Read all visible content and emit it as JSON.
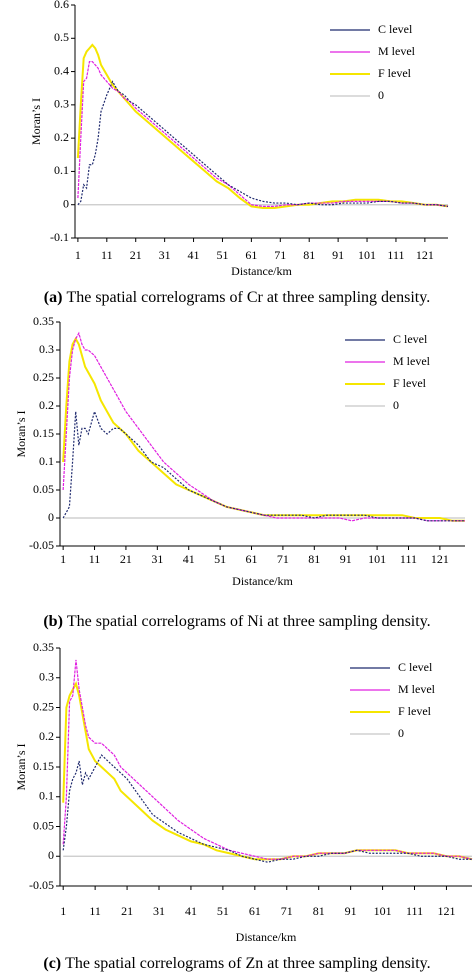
{
  "chart_data": [
    {
      "type": "line",
      "caption_label": "(a)",
      "caption": "The spatial correlograms of Cr at three sampling density.",
      "x_label": "Distance/km",
      "y_label": "Moran’s I",
      "xlim": [
        0,
        129
      ],
      "ylim": [
        -0.1,
        0.6
      ],
      "xticks": [
        1,
        11,
        21,
        31,
        41,
        51,
        61,
        71,
        81,
        91,
        101,
        111,
        121
      ],
      "yticks": [
        -0.1,
        0,
        0.1,
        0.2,
        0.3,
        0.4,
        0.5,
        0.6
      ],
      "x": [
        1,
        2,
        3,
        4,
        5,
        6,
        7,
        8,
        9,
        11,
        13,
        15,
        17,
        19,
        21,
        25,
        29,
        33,
        37,
        41,
        45,
        49,
        53,
        57,
        61,
        65,
        69,
        73,
        77,
        81,
        85,
        89,
        93,
        97,
        101,
        105,
        109,
        113,
        117,
        121,
        125,
        129
      ],
      "series": [
        {
          "name": "C level",
          "color": "#1f2a6e",
          "values": [
            0.0,
            0.01,
            0.06,
            0.05,
            0.12,
            0.12,
            0.15,
            0.2,
            0.28,
            0.33,
            0.37,
            0.34,
            0.33,
            0.31,
            0.3,
            0.27,
            0.24,
            0.21,
            0.18,
            0.15,
            0.12,
            0.09,
            0.06,
            0.04,
            0.02,
            0.01,
            0.005,
            0.005,
            0.0,
            0.005,
            0.0,
            0.0,
            0.005,
            0.005,
            0.005,
            0.01,
            0.01,
            0.005,
            0.005,
            0.0,
            0.0,
            -0.005
          ]
        },
        {
          "name": "M level",
          "color": "#e020e0",
          "values": [
            0.02,
            0.2,
            0.37,
            0.38,
            0.43,
            0.43,
            0.42,
            0.41,
            0.39,
            0.37,
            0.35,
            0.34,
            0.32,
            0.31,
            0.29,
            0.26,
            0.23,
            0.2,
            0.17,
            0.14,
            0.11,
            0.08,
            0.06,
            0.03,
            0.0,
            -0.005,
            -0.005,
            0.0,
            0.0,
            0.005,
            0.005,
            0.005,
            0.01,
            0.01,
            0.01,
            0.01,
            0.01,
            0.005,
            0.005,
            0.0,
            0.0,
            -0.005
          ]
        },
        {
          "name": "F level",
          "color": "#f5e600",
          "values": [
            0.14,
            0.3,
            0.44,
            0.46,
            0.47,
            0.48,
            0.47,
            0.45,
            0.42,
            0.39,
            0.36,
            0.34,
            0.32,
            0.3,
            0.28,
            0.25,
            0.22,
            0.19,
            0.16,
            0.13,
            0.1,
            0.07,
            0.05,
            0.02,
            -0.005,
            -0.01,
            -0.01,
            -0.005,
            0.0,
            0.0,
            0.005,
            0.01,
            0.01,
            0.015,
            0.015,
            0.015,
            0.01,
            0.01,
            0.005,
            0.0,
            0.0,
            -0.005
          ]
        },
        {
          "name": "0",
          "color": "#c8c8c8",
          "values": [
            0,
            0,
            0,
            0,
            0,
            0,
            0,
            0,
            0,
            0,
            0,
            0,
            0,
            0,
            0,
            0,
            0,
            0,
            0,
            0,
            0,
            0,
            0,
            0,
            0,
            0,
            0,
            0,
            0,
            0,
            0,
            0,
            0,
            0,
            0,
            0,
            0,
            0,
            0,
            0,
            0,
            0
          ]
        }
      ]
    },
    {
      "type": "line",
      "caption_label": "(b)",
      "caption": "The spatial correlograms of Ni at three sampling density.",
      "x_label": "Distance/km",
      "y_label": "Moran’s I",
      "xlim": [
        0,
        129
      ],
      "ylim": [
        -0.05,
        0.35
      ],
      "xticks": [
        1,
        11,
        21,
        31,
        41,
        51,
        61,
        71,
        81,
        91,
        101,
        111,
        121
      ],
      "yticks": [
        -0.05,
        0,
        0.05,
        0.1,
        0.15,
        0.2,
        0.25,
        0.3,
        0.35
      ],
      "x": [
        1,
        2,
        3,
        4,
        5,
        6,
        7,
        8,
        9,
        11,
        13,
        15,
        17,
        19,
        21,
        25,
        29,
        33,
        37,
        41,
        45,
        49,
        53,
        57,
        61,
        65,
        69,
        73,
        77,
        81,
        85,
        89,
        93,
        97,
        101,
        105,
        109,
        113,
        117,
        121,
        125,
        129
      ],
      "series": [
        {
          "name": "C level",
          "color": "#1f2a6e",
          "values": [
            0.0,
            0.01,
            0.02,
            0.1,
            0.19,
            0.13,
            0.16,
            0.16,
            0.15,
            0.19,
            0.16,
            0.15,
            0.16,
            0.16,
            0.15,
            0.13,
            0.1,
            0.09,
            0.07,
            0.05,
            0.04,
            0.03,
            0.02,
            0.015,
            0.01,
            0.005,
            0.005,
            0.005,
            0.005,
            0.0,
            0.005,
            0.005,
            0.005,
            0.005,
            0.0,
            0.0,
            0.0,
            0.0,
            -0.005,
            -0.005,
            -0.005,
            -0.005
          ]
        },
        {
          "name": "M level",
          "color": "#e020e0",
          "values": [
            0.05,
            0.15,
            0.25,
            0.3,
            0.32,
            0.33,
            0.31,
            0.3,
            0.3,
            0.29,
            0.27,
            0.25,
            0.23,
            0.21,
            0.19,
            0.16,
            0.13,
            0.1,
            0.08,
            0.06,
            0.045,
            0.03,
            0.02,
            0.015,
            0.01,
            0.005,
            0.0,
            0.0,
            0.0,
            0.0,
            0.0,
            0.0,
            -0.005,
            0.0,
            0.0,
            0.0,
            0.0,
            0.0,
            -0.005,
            -0.005,
            -0.005,
            -0.005
          ]
        },
        {
          "name": "F level",
          "color": "#f5e600",
          "values": [
            0.1,
            0.2,
            0.28,
            0.31,
            0.32,
            0.31,
            0.29,
            0.27,
            0.26,
            0.24,
            0.21,
            0.19,
            0.17,
            0.16,
            0.15,
            0.12,
            0.1,
            0.08,
            0.06,
            0.05,
            0.04,
            0.03,
            0.02,
            0.015,
            0.01,
            0.005,
            0.005,
            0.005,
            0.005,
            0.005,
            0.005,
            0.005,
            0.005,
            0.005,
            0.005,
            0.005,
            0.005,
            0.0,
            0.0,
            0.0,
            -0.005,
            -0.005
          ]
        },
        {
          "name": "0",
          "color": "#c8c8c8",
          "values": [
            0,
            0,
            0,
            0,
            0,
            0,
            0,
            0,
            0,
            0,
            0,
            0,
            0,
            0,
            0,
            0,
            0,
            0,
            0,
            0,
            0,
            0,
            0,
            0,
            0,
            0,
            0,
            0,
            0,
            0,
            0,
            0,
            0,
            0,
            0,
            0,
            0,
            0,
            0,
            0,
            0,
            0
          ]
        }
      ]
    },
    {
      "type": "line",
      "caption_label": "(c)",
      "caption": "The spatial correlograms of Zn at three sampling density.",
      "x_label": "Distance/km",
      "y_label": "Moran’s I",
      "xlim": [
        0,
        129
      ],
      "ylim": [
        -0.05,
        0.35
      ],
      "xticks": [
        1,
        11,
        21,
        31,
        41,
        51,
        61,
        71,
        81,
        91,
        101,
        111,
        121
      ],
      "yticks": [
        -0.05,
        0,
        0.05,
        0.1,
        0.15,
        0.2,
        0.25,
        0.3,
        0.35
      ],
      "x": [
        1,
        2,
        3,
        4,
        5,
        6,
        7,
        8,
        9,
        11,
        13,
        15,
        17,
        19,
        21,
        25,
        29,
        33,
        37,
        41,
        45,
        49,
        53,
        57,
        61,
        65,
        69,
        73,
        77,
        81,
        85,
        89,
        93,
        97,
        101,
        105,
        109,
        113,
        117,
        121,
        125,
        129
      ],
      "series": [
        {
          "name": "C level",
          "color": "#1f2a6e",
          "values": [
            0.01,
            0.05,
            0.11,
            0.13,
            0.14,
            0.16,
            0.12,
            0.14,
            0.13,
            0.15,
            0.17,
            0.16,
            0.15,
            0.14,
            0.13,
            0.1,
            0.07,
            0.055,
            0.04,
            0.03,
            0.02,
            0.015,
            0.01,
            0.0,
            -0.005,
            -0.01,
            -0.005,
            -0.005,
            0.0,
            0.0,
            0.005,
            0.005,
            0.01,
            0.005,
            0.005,
            0.005,
            0.005,
            0.0,
            0.0,
            0.0,
            -0.005,
            -0.005
          ]
        },
        {
          "name": "M level",
          "color": "#e020e0",
          "values": [
            0.02,
            0.1,
            0.26,
            0.27,
            0.33,
            0.28,
            0.25,
            0.22,
            0.2,
            0.19,
            0.19,
            0.18,
            0.17,
            0.15,
            0.14,
            0.12,
            0.1,
            0.08,
            0.06,
            0.045,
            0.03,
            0.02,
            0.01,
            0.005,
            0.0,
            -0.005,
            -0.005,
            0.0,
            0.0,
            0.005,
            0.005,
            0.005,
            0.01,
            0.01,
            0.01,
            0.01,
            0.005,
            0.005,
            0.005,
            0.0,
            0.0,
            -0.005
          ]
        },
        {
          "name": "F level",
          "color": "#f5e600",
          "values": [
            0.09,
            0.25,
            0.27,
            0.28,
            0.29,
            0.27,
            0.24,
            0.21,
            0.18,
            0.16,
            0.15,
            0.14,
            0.13,
            0.11,
            0.1,
            0.08,
            0.06,
            0.045,
            0.035,
            0.025,
            0.02,
            0.01,
            0.005,
            0.0,
            -0.005,
            -0.005,
            -0.005,
            0.0,
            0.0,
            0.005,
            0.005,
            0.005,
            0.01,
            0.01,
            0.01,
            0.01,
            0.005,
            0.005,
            0.005,
            0.0,
            0.0,
            -0.005
          ]
        },
        {
          "name": "0",
          "color": "#c8c8c8",
          "values": [
            0,
            0,
            0,
            0,
            0,
            0,
            0,
            0,
            0,
            0,
            0,
            0,
            0,
            0,
            0,
            0,
            0,
            0,
            0,
            0,
            0,
            0,
            0,
            0,
            0,
            0,
            0,
            0,
            0,
            0,
            0,
            0,
            0,
            0,
            0,
            0,
            0,
            0,
            0,
            0,
            0,
            0
          ]
        }
      ]
    }
  ]
}
